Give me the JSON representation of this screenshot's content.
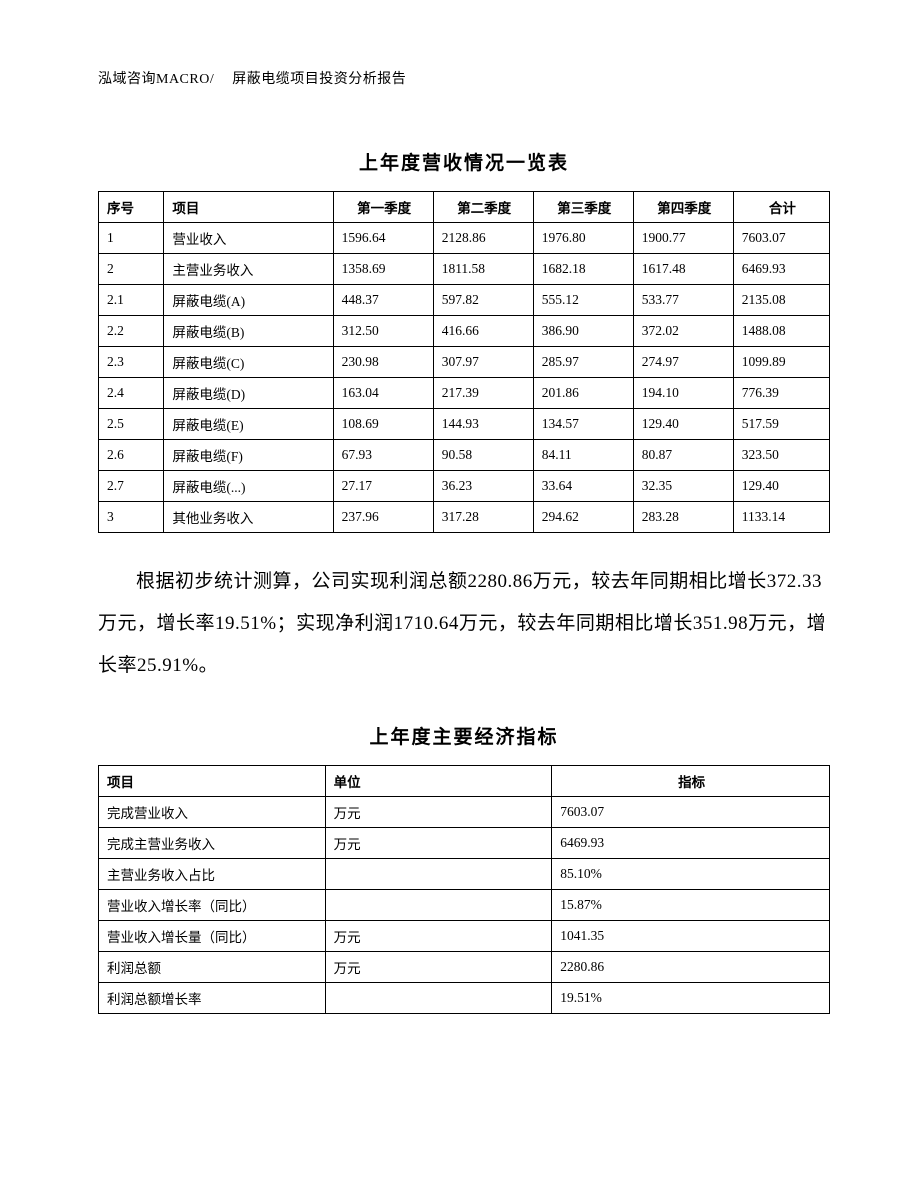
{
  "header": {
    "left": "泓域咨询MACRO/",
    "right": "屏蔽电缆项目投资分析报告"
  },
  "table1": {
    "title": "上年度营收情况一览表",
    "columns": [
      "序号",
      "项目",
      "第一季度",
      "第二季度",
      "第三季度",
      "第四季度",
      "合计"
    ],
    "rows": [
      [
        "1",
        "营业收入",
        "1596.64",
        "2128.86",
        "1976.80",
        "1900.77",
        "7603.07"
      ],
      [
        "2",
        "主营业务收入",
        "1358.69",
        "1811.58",
        "1682.18",
        "1617.48",
        "6469.93"
      ],
      [
        "2.1",
        "屏蔽电缆(A)",
        "448.37",
        "597.82",
        "555.12",
        "533.77",
        "2135.08"
      ],
      [
        "2.2",
        "屏蔽电缆(B)",
        "312.50",
        "416.66",
        "386.90",
        "372.02",
        "1488.08"
      ],
      [
        "2.3",
        "屏蔽电缆(C)",
        "230.98",
        "307.97",
        "285.97",
        "274.97",
        "1099.89"
      ],
      [
        "2.4",
        "屏蔽电缆(D)",
        "163.04",
        "217.39",
        "201.86",
        "194.10",
        "776.39"
      ],
      [
        "2.5",
        "屏蔽电缆(E)",
        "108.69",
        "144.93",
        "134.57",
        "129.40",
        "517.59"
      ],
      [
        "2.6",
        "屏蔽电缆(F)",
        "67.93",
        "90.58",
        "84.11",
        "80.87",
        "323.50"
      ],
      [
        "2.7",
        "屏蔽电缆(...)",
        "27.17",
        "36.23",
        "33.64",
        "32.35",
        "129.40"
      ],
      [
        "3",
        "其他业务收入",
        "237.96",
        "317.28",
        "294.62",
        "283.28",
        "1133.14"
      ]
    ]
  },
  "paragraph": "根据初步统计测算，公司实现利润总额2280.86万元，较去年同期相比增长372.33万元，增长率19.51%；实现净利润1710.64万元，较去年同期相比增长351.98万元，增长率25.91%。",
  "table2": {
    "title": "上年度主要经济指标",
    "columns": [
      "项目",
      "单位",
      "指标"
    ],
    "rows": [
      [
        "完成营业收入",
        "万元",
        "7603.07"
      ],
      [
        "完成主营业务收入",
        "万元",
        "6469.93"
      ],
      [
        "主营业务收入占比",
        "",
        "85.10%"
      ],
      [
        "营业收入增长率（同比）",
        "",
        "15.87%"
      ],
      [
        "营业收入增长量（同比）",
        "万元",
        "1041.35"
      ],
      [
        "利润总额",
        "万元",
        "2280.86"
      ],
      [
        "利润总额增长率",
        "",
        "19.51%"
      ]
    ]
  },
  "style": {
    "text_color": "#000000",
    "background_color": "#ffffff",
    "border_color": "#000000",
    "header_fontsize": 14,
    "title_fontsize": 19,
    "cell_fontsize": 13.5,
    "para_fontsize": 19,
    "para_line_height": 2.2,
    "font_family": "SimSun"
  }
}
